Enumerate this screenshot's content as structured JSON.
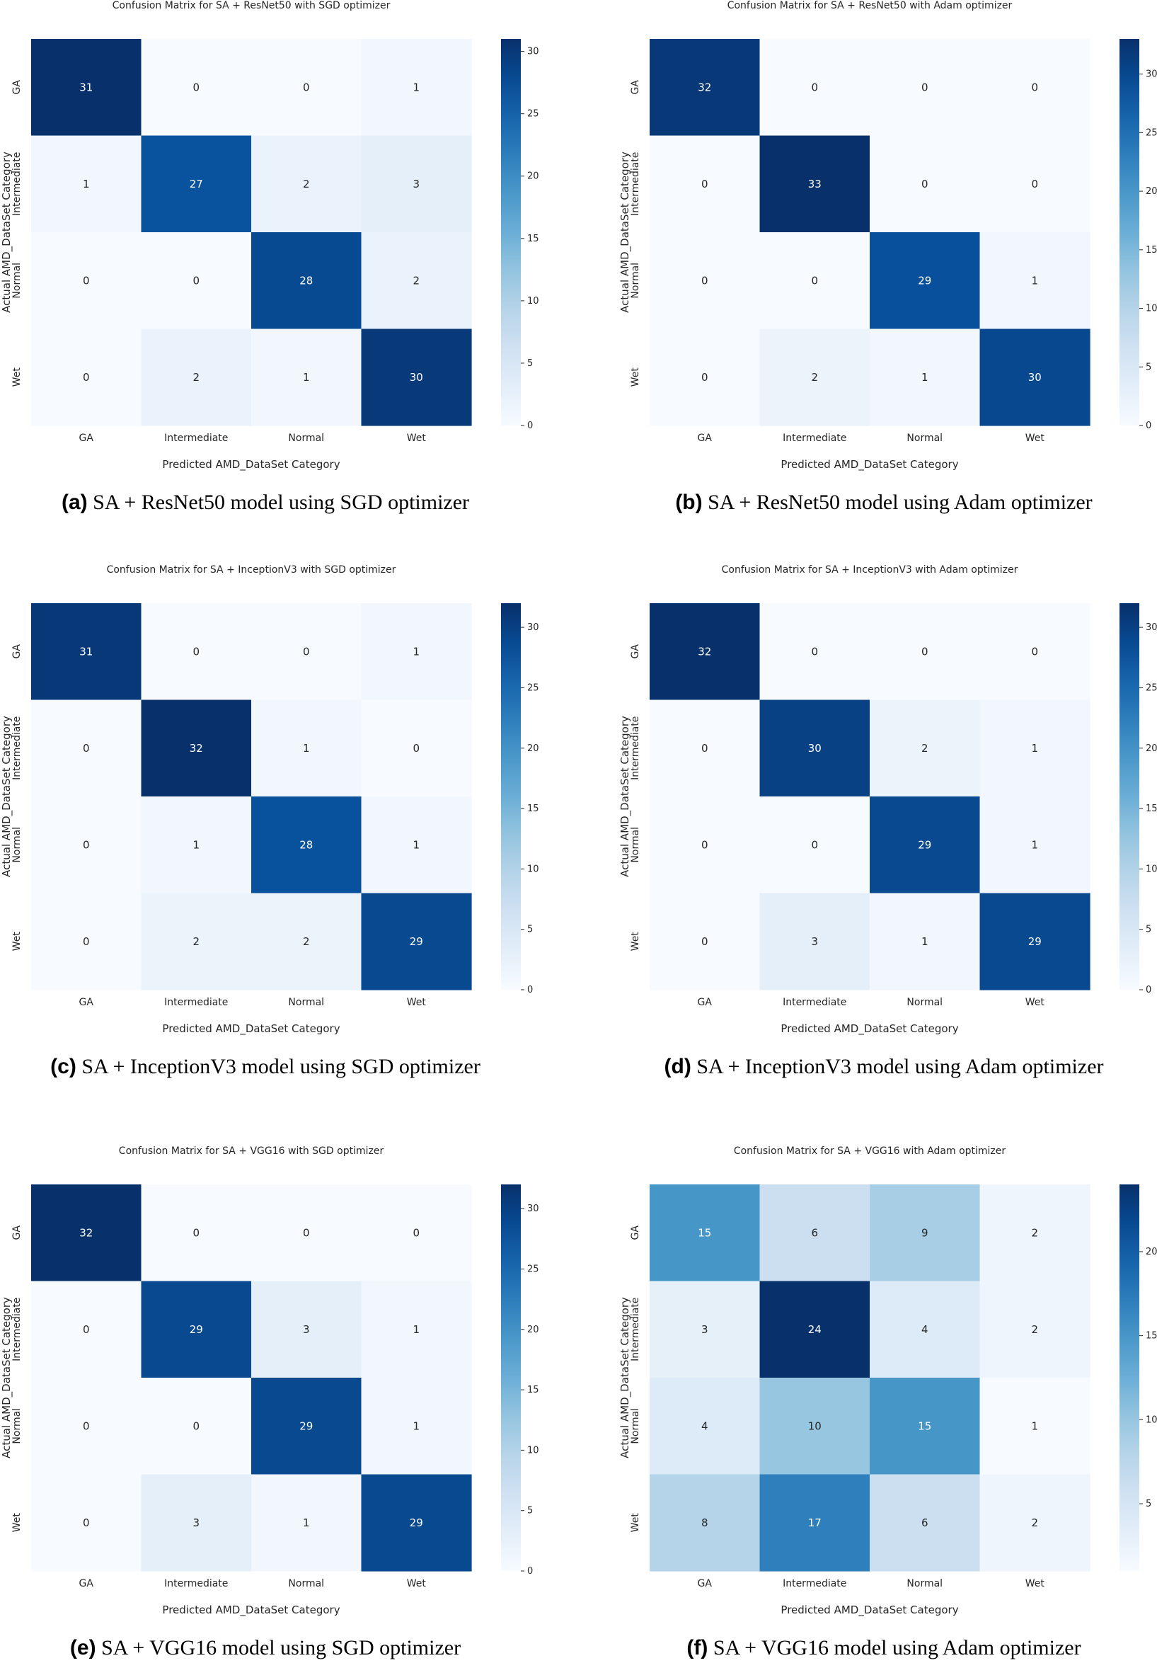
{
  "chart_data": [
    {
      "type": "heatmap",
      "title": "Confusion Matrix for SA + ResNet50 with SGD optimizer",
      "caption_letter": "(a)",
      "caption_text": "SA + ResNet50 model using SGD optimizer",
      "xlabel": "Predicted AMD_DataSet Category",
      "ylabel": "Actual AMD_DataSet Category",
      "x_categories": [
        "GA",
        "Intermediate",
        "Normal",
        "Wet"
      ],
      "y_categories": [
        "GA",
        "Intermediate",
        "Normal",
        "Wet"
      ],
      "values": [
        [
          31,
          0,
          0,
          1
        ],
        [
          1,
          27,
          2,
          3
        ],
        [
          0,
          0,
          28,
          2
        ],
        [
          0,
          2,
          1,
          30
        ]
      ],
      "colorbar_range": [
        0,
        31
      ],
      "colorbar_ticks": [
        0,
        5,
        10,
        15,
        20,
        25,
        30
      ]
    },
    {
      "type": "heatmap",
      "title": "Confusion Matrix for SA + ResNet50 with Adam optimizer",
      "caption_letter": "(b)",
      "caption_text": "SA + ResNet50 model using Adam optimizer",
      "xlabel": "Predicted AMD_DataSet Category",
      "ylabel": "Actual AMD_DataSet Category",
      "x_categories": [
        "GA",
        "Intermediate",
        "Normal",
        "Wet"
      ],
      "y_categories": [
        "GA",
        "Intermediate",
        "Normal",
        "Wet"
      ],
      "values": [
        [
          32,
          0,
          0,
          0
        ],
        [
          0,
          33,
          0,
          0
        ],
        [
          0,
          0,
          29,
          1
        ],
        [
          0,
          2,
          1,
          30
        ]
      ],
      "colorbar_range": [
        0,
        33
      ],
      "colorbar_ticks": [
        0,
        5,
        10,
        15,
        20,
        25,
        30
      ]
    },
    {
      "type": "heatmap",
      "title": "Confusion Matrix for SA + InceptionV3 with SGD optimizer",
      "caption_letter": "(c)",
      "caption_text": "SA + InceptionV3 model using SGD optimizer",
      "xlabel": "Predicted AMD_DataSet Category",
      "ylabel": "Actual AMD_DataSet Category",
      "x_categories": [
        "GA",
        "Intermediate",
        "Normal",
        "Wet"
      ],
      "y_categories": [
        "GA",
        "Intermediate",
        "Normal",
        "Wet"
      ],
      "values": [
        [
          31,
          0,
          0,
          1
        ],
        [
          0,
          32,
          1,
          0
        ],
        [
          0,
          1,
          28,
          1
        ],
        [
          0,
          2,
          2,
          29
        ]
      ],
      "colorbar_range": [
        0,
        32
      ],
      "colorbar_ticks": [
        0,
        5,
        10,
        15,
        20,
        25,
        30
      ]
    },
    {
      "type": "heatmap",
      "title": "Confusion Matrix for SA + InceptionV3 with Adam optimizer",
      "caption_letter": "(d)",
      "caption_text": "SA + InceptionV3 model using Adam optimizer",
      "xlabel": "Predicted AMD_DataSet Category",
      "ylabel": "Actual AMD_DataSet Category",
      "x_categories": [
        "GA",
        "Intermediate",
        "Normal",
        "Wet"
      ],
      "y_categories": [
        "GA",
        "Intermediate",
        "Normal",
        "Wet"
      ],
      "values": [
        [
          32,
          0,
          0,
          0
        ],
        [
          0,
          30,
          2,
          1
        ],
        [
          0,
          0,
          29,
          1
        ],
        [
          0,
          3,
          1,
          29
        ]
      ],
      "colorbar_range": [
        0,
        32
      ],
      "colorbar_ticks": [
        0,
        5,
        10,
        15,
        20,
        25,
        30
      ]
    },
    {
      "type": "heatmap",
      "title": "Confusion Matrix for SA + VGG16 with SGD optimizer",
      "caption_letter": "(e)",
      "caption_text": "SA + VGG16 model using SGD optimizer",
      "xlabel": "Predicted AMD_DataSet Category",
      "ylabel": "Actual AMD_DataSet Category",
      "x_categories": [
        "GA",
        "Intermediate",
        "Normal",
        "Wet"
      ],
      "y_categories": [
        "GA",
        "Intermediate",
        "Normal",
        "Wet"
      ],
      "values": [
        [
          32,
          0,
          0,
          0
        ],
        [
          0,
          29,
          3,
          1
        ],
        [
          0,
          0,
          29,
          1
        ],
        [
          0,
          3,
          1,
          29
        ]
      ],
      "colorbar_range": [
        0,
        32
      ],
      "colorbar_ticks": [
        0,
        5,
        10,
        15,
        20,
        25,
        30
      ]
    },
    {
      "type": "heatmap",
      "title": "Confusion Matrix for SA + VGG16 with Adam optimizer",
      "caption_letter": "(f)",
      "caption_text": "SA + VGG16 model using Adam optimizer",
      "xlabel": "Predicted AMD_DataSet Category",
      "ylabel": "Actual AMD_DataSet Category",
      "x_categories": [
        "GA",
        "Intermediate",
        "Normal",
        "Wet"
      ],
      "y_categories": [
        "GA",
        "Intermediate",
        "Normal",
        "Wet"
      ],
      "values": [
        [
          15,
          6,
          9,
          2
        ],
        [
          3,
          24,
          4,
          2
        ],
        [
          4,
          10,
          15,
          1
        ],
        [
          8,
          17,
          6,
          2
        ]
      ],
      "colorbar_range": [
        1,
        24
      ],
      "colorbar_ticks": [
        5,
        10,
        15,
        20
      ]
    }
  ]
}
